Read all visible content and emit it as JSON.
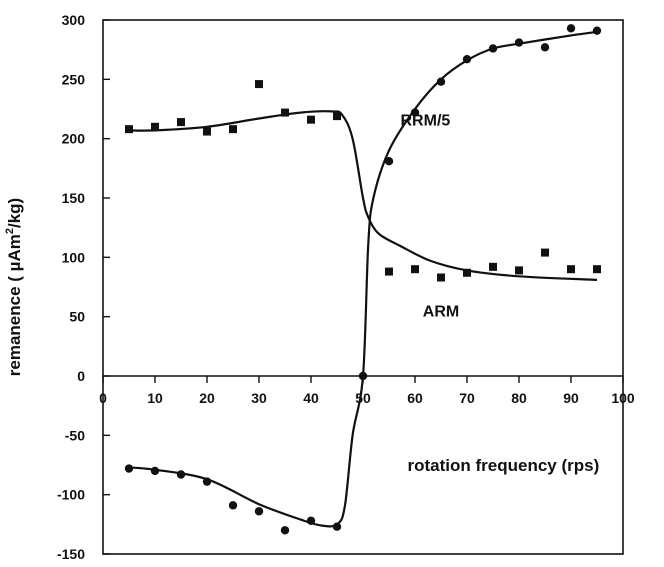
{
  "chart_data": {
    "type": "scatter",
    "title": "",
    "xlabel": "rotation frequency (rps)",
    "ylabel_parts": {
      "before": "remanence ( µAm",
      "sup": "2",
      "after": "/kg)"
    },
    "xlim": [
      0,
      100
    ],
    "ylim": [
      -150,
      300
    ],
    "x_ticks": [
      0,
      10,
      20,
      30,
      40,
      50,
      60,
      70,
      80,
      90,
      100
    ],
    "y_ticks": [
      -150,
      -100,
      -50,
      0,
      50,
      100,
      150,
      200,
      250,
      300
    ],
    "grid": false,
    "legend": "none",
    "series": [
      {
        "name": "ARM",
        "marker": "square",
        "x": [
          5,
          10,
          15,
          20,
          25,
          30,
          35,
          40,
          45,
          55,
          60,
          65,
          70,
          75,
          80,
          85,
          90,
          95
        ],
        "y": [
          208,
          210,
          214,
          206,
          208,
          246,
          222,
          216,
          219,
          88,
          90,
          83,
          87,
          92,
          89,
          104,
          90,
          90
        ],
        "fit": {
          "x": [
            5,
            10,
            20,
            30,
            38,
            44,
            46,
            48,
            50,
            51,
            53,
            57,
            63,
            70,
            80,
            95
          ],
          "y": [
            207,
            207,
            210,
            217,
            222,
            223,
            220,
            200,
            150,
            134,
            120,
            110,
            97,
            89,
            84,
            81
          ]
        }
      },
      {
        "name": "RRM/5",
        "marker": "circle",
        "x": [
          5,
          10,
          15,
          20,
          25,
          30,
          35,
          40,
          45,
          50,
          55,
          60,
          65,
          70,
          75,
          80,
          85,
          90,
          95
        ],
        "y": [
          -78,
          -80,
          -83,
          -89,
          -109,
          -114,
          -130,
          -122,
          -127,
          0,
          181,
          222,
          248,
          267,
          276,
          281,
          277,
          293,
          291
        ],
        "fit": {
          "x": [
            5,
            10,
            20,
            30,
            38,
            42,
            45,
            46.5,
            48,
            50,
            51,
            52,
            55,
            60,
            65,
            70,
            75,
            80,
            90,
            95
          ],
          "y": [
            -77,
            -79,
            -87,
            -108,
            -121,
            -126,
            -125,
            -110,
            -50,
            0,
            110,
            150,
            190,
            225,
            250,
            266,
            276,
            280,
            287,
            290
          ]
        }
      }
    ],
    "annotations": [
      {
        "text": "RRM/5",
        "x": 62,
        "y": 211
      },
      {
        "text": "ARM",
        "x": 65,
        "y": 50
      },
      {
        "text": "rotation frequency (rps)",
        "x": 77,
        "y": -80
      }
    ]
  }
}
